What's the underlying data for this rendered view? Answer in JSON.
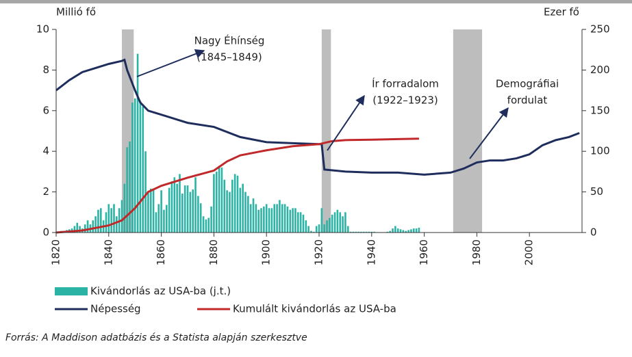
{
  "chart_data": {
    "type": "combo",
    "ylabel": "Millió fő",
    "y2label": "Ezer fő",
    "xlim": [
      1820,
      2020
    ],
    "xticks": [
      1820,
      1840,
      1860,
      1880,
      1900,
      1920,
      1940,
      1960,
      1980,
      2000
    ],
    "ylim": [
      0,
      10
    ],
    "yticks": [
      0,
      2,
      4,
      6,
      8,
      10
    ],
    "y2lim": [
      0,
      250
    ],
    "y2ticks": [
      0,
      50,
      100,
      150,
      200,
      250
    ],
    "shaded_periods": [
      [
        1845,
        1849.5
      ],
      [
        1921,
        1924.5
      ],
      [
        1971,
        1982
      ]
    ],
    "annotations": [
      [
        "Nagy Éhínség",
        "(1845–1849)"
      ],
      [
        "Ír forradalom",
        "(1922–1923)"
      ],
      [
        "Demográfiai",
        "fordulat"
      ]
    ],
    "series": [
      {
        "name": "Kivándorlás az USA-ba (j.t.)",
        "type": "bar",
        "axis": "y2",
        "color": "#2bb3a5",
        "x": [
          1820,
          1821,
          1822,
          1823,
          1824,
          1825,
          1826,
          1827,
          1828,
          1829,
          1830,
          1831,
          1832,
          1833,
          1834,
          1835,
          1836,
          1837,
          1838,
          1839,
          1840,
          1841,
          1842,
          1843,
          1844,
          1845,
          1846,
          1847,
          1848,
          1849,
          1850,
          1851,
          1852,
          1853,
          1854,
          1855,
          1856,
          1857,
          1858,
          1859,
          1860,
          1861,
          1862,
          1863,
          1864,
          1865,
          1866,
          1867,
          1868,
          1869,
          1870,
          1871,
          1872,
          1873,
          1874,
          1875,
          1876,
          1877,
          1878,
          1879,
          1880,
          1881,
          1882,
          1883,
          1884,
          1885,
          1886,
          1887,
          1888,
          1889,
          1890,
          1891,
          1892,
          1893,
          1894,
          1895,
          1896,
          1897,
          1898,
          1899,
          1900,
          1901,
          1902,
          1903,
          1904,
          1905,
          1906,
          1907,
          1908,
          1909,
          1910,
          1911,
          1912,
          1913,
          1914,
          1915,
          1916,
          1917,
          1918,
          1919,
          1920,
          1921,
          1922,
          1923,
          1924,
          1925,
          1926,
          1927,
          1928,
          1929,
          1930,
          1931,
          1932,
          1933,
          1934,
          1935,
          1936,
          1937,
          1938,
          1939,
          1940,
          1941,
          1942,
          1943,
          1944,
          1945,
          1946,
          1947,
          1948,
          1949,
          1950,
          1951,
          1952,
          1953,
          1954,
          1955,
          1956,
          1957,
          1958
        ],
        "values": [
          1,
          1,
          2,
          2,
          3,
          4,
          5,
          8,
          12,
          8,
          5,
          10,
          15,
          10,
          15,
          20,
          28,
          30,
          15,
          25,
          35,
          30,
          35,
          20,
          30,
          40,
          60,
          105,
          112,
          160,
          165,
          220,
          162,
          155,
          100,
          50,
          54,
          54,
          25,
          35,
          52,
          28,
          34,
          55,
          63,
          68,
          60,
          72,
          48,
          58,
          58,
          50,
          53,
          68,
          45,
          36,
          20,
          16,
          18,
          32,
          72,
          75,
          82,
          80,
          65,
          52,
          50,
          65,
          72,
          70,
          55,
          60,
          50,
          45,
          35,
          42,
          35,
          28,
          30,
          32,
          35,
          30,
          30,
          35,
          35,
          40,
          35,
          35,
          32,
          28,
          30,
          30,
          25,
          25,
          22,
          15,
          8,
          2,
          1,
          8,
          10,
          30,
          10,
          15,
          18,
          22,
          25,
          28,
          25,
          20,
          25,
          8,
          1,
          1,
          1,
          1,
          1,
          1,
          1,
          1,
          1,
          1,
          0.5,
          0.5,
          0.5,
          0.5,
          1,
          2,
          5,
          8,
          5,
          4,
          3,
          2,
          3,
          4,
          5,
          5,
          6
        ]
      },
      {
        "name": "Népesség",
        "type": "line",
        "axis": "y",
        "color": "#1e2d5c",
        "x": [
          1820,
          1825,
          1830,
          1835,
          1840,
          1845,
          1846,
          1847,
          1850,
          1852,
          1855,
          1860,
          1870,
          1880,
          1890,
          1900,
          1910,
          1920,
          1921,
          1922,
          1930,
          1940,
          1950,
          1960,
          1970,
          1975,
          1980,
          1985,
          1990,
          1995,
          2000,
          2005,
          2010,
          2015,
          2019
        ],
        "values": [
          7.0,
          7.5,
          7.9,
          8.1,
          8.3,
          8.45,
          8.5,
          8.0,
          7.0,
          6.4,
          6.0,
          5.8,
          5.4,
          5.2,
          4.7,
          4.45,
          4.4,
          4.35,
          4.35,
          3.1,
          3.0,
          2.95,
          2.95,
          2.85,
          2.95,
          3.15,
          3.45,
          3.55,
          3.55,
          3.65,
          3.85,
          4.3,
          4.55,
          4.7,
          4.9
        ]
      },
      {
        "name": "Kumulált kivándorlás az USA-ba",
        "type": "line",
        "axis": "y",
        "color": "#c0282a",
        "x": [
          1820,
          1830,
          1840,
          1845,
          1850,
          1855,
          1860,
          1870,
          1880,
          1885,
          1890,
          1900,
          1910,
          1920,
          1925,
          1930,
          1940,
          1950,
          1958
        ],
        "values": [
          0,
          0.1,
          0.35,
          0.6,
          1.2,
          2.0,
          2.3,
          2.7,
          3.05,
          3.5,
          3.8,
          4.05,
          4.25,
          4.35,
          4.5,
          4.55,
          4.57,
          4.6,
          4.62
        ]
      }
    ],
    "source": "Forrás: A Maddison adatbázis és a Statista alapján szerkesztve"
  }
}
